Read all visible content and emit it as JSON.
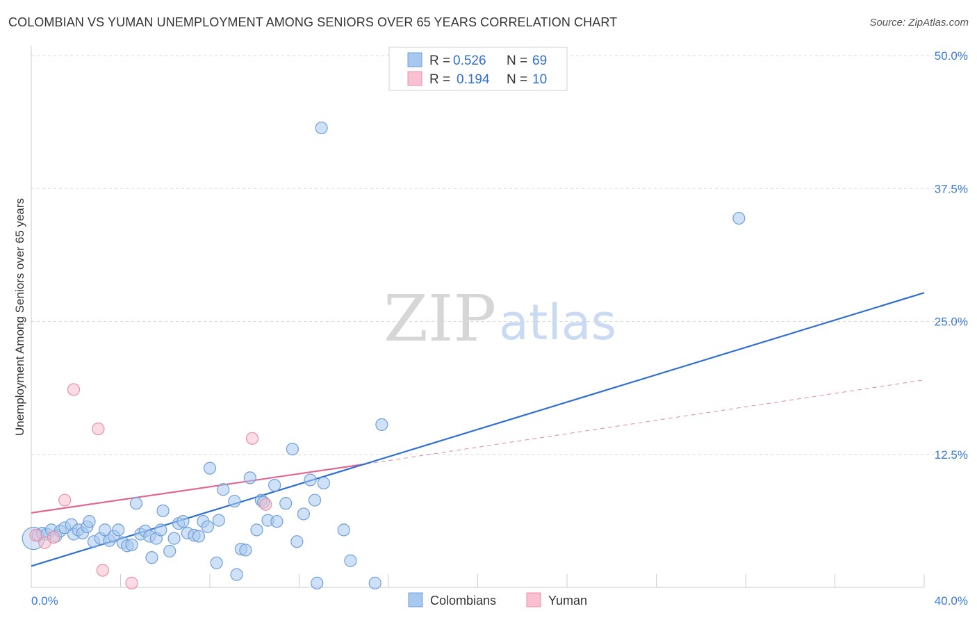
{
  "title": "COLOMBIAN VS YUMAN UNEMPLOYMENT AMONG SENIORS OVER 65 YEARS CORRELATION CHART",
  "source": "Source: ZipAtlas.com",
  "colors": {
    "blue_fill": "#a8c8f0",
    "blue_stroke": "#6f9fd8",
    "blue_line": "#2f6fd0",
    "pink_fill": "#f8c0d0",
    "pink_stroke": "#e890a8",
    "pink_line": "#e06890",
    "grid": "#d9d9d9",
    "axis_label": "#3b7bd4"
  },
  "legend": {
    "rows": [
      {
        "r_label": "R =",
        "r_value": "0.526",
        "n_label": "N =",
        "n_value": "69",
        "series": "Colombians"
      },
      {
        "r_label": "R =",
        "r_value": "0.194",
        "n_label": "N =",
        "n_value": "10",
        "series": "Yuman"
      }
    ]
  },
  "watermark": {
    "zip": "ZIP",
    "atlas": "atlas"
  },
  "chart_data": {
    "type": "scatter",
    "title": "COLOMBIAN VS YUMAN UNEMPLOYMENT AMONG SENIORS OVER 65 YEARS CORRELATION CHART",
    "xlabel": "",
    "ylabel": "Unemployment Among Seniors over 65 years",
    "xlim": [
      0,
      40
    ],
    "ylim": [
      0,
      50
    ],
    "x_tick_labels": [
      "0.0%",
      "40.0%"
    ],
    "y_ticks": [
      12.5,
      25.0,
      37.5,
      50.0
    ],
    "y_tick_labels": [
      "12.5%",
      "25.0%",
      "37.5%",
      "50.0%"
    ],
    "x_minor_ticks": [
      4,
      8,
      12,
      16,
      20,
      24,
      28,
      32,
      36,
      40
    ],
    "grid": true,
    "legend_position": "top-center",
    "series": [
      {
        "name": "Colombians",
        "color": "#6f9fd8",
        "r": 0.526,
        "n": 69,
        "trend": {
          "x0": 0,
          "y0": 2.0,
          "x1": 40,
          "y1": 27.7,
          "style": "solid"
        },
        "points": [
          {
            "x": 0.1,
            "y": 4.6,
            "big": true
          },
          {
            "x": 0.3,
            "y": 4.9
          },
          {
            "x": 0.5,
            "y": 5.1
          },
          {
            "x": 0.7,
            "y": 5.0
          },
          {
            "x": 0.9,
            "y": 5.4
          },
          {
            "x": 1.1,
            "y": 4.8
          },
          {
            "x": 1.3,
            "y": 5.3
          },
          {
            "x": 1.5,
            "y": 5.6
          },
          {
            "x": 1.8,
            "y": 5.9
          },
          {
            "x": 1.9,
            "y": 5.0
          },
          {
            "x": 2.1,
            "y": 5.4
          },
          {
            "x": 2.3,
            "y": 5.1
          },
          {
            "x": 2.5,
            "y": 5.7
          },
          {
            "x": 2.6,
            "y": 6.2
          },
          {
            "x": 2.8,
            "y": 4.3
          },
          {
            "x": 3.1,
            "y": 4.6
          },
          {
            "x": 3.3,
            "y": 5.4
          },
          {
            "x": 3.5,
            "y": 4.4
          },
          {
            "x": 3.7,
            "y": 4.8
          },
          {
            "x": 3.9,
            "y": 5.4
          },
          {
            "x": 4.1,
            "y": 4.2
          },
          {
            "x": 4.3,
            "y": 3.9
          },
          {
            "x": 4.5,
            "y": 4.0
          },
          {
            "x": 4.7,
            "y": 7.9
          },
          {
            "x": 4.9,
            "y": 5.0
          },
          {
            "x": 5.1,
            "y": 5.3
          },
          {
            "x": 5.3,
            "y": 4.8
          },
          {
            "x": 5.4,
            "y": 2.8
          },
          {
            "x": 5.6,
            "y": 4.6
          },
          {
            "x": 5.8,
            "y": 5.4
          },
          {
            "x": 5.9,
            "y": 7.2
          },
          {
            "x": 6.2,
            "y": 3.4
          },
          {
            "x": 6.4,
            "y": 4.6
          },
          {
            "x": 6.6,
            "y": 6.0
          },
          {
            "x": 6.8,
            "y": 6.2
          },
          {
            "x": 7.0,
            "y": 5.1
          },
          {
            "x": 7.3,
            "y": 4.9
          },
          {
            "x": 7.5,
            "y": 4.8
          },
          {
            "x": 7.7,
            "y": 6.2
          },
          {
            "x": 7.9,
            "y": 5.7
          },
          {
            "x": 8.0,
            "y": 11.2
          },
          {
            "x": 8.3,
            "y": 2.3
          },
          {
            "x": 8.4,
            "y": 6.3
          },
          {
            "x": 8.6,
            "y": 9.2
          },
          {
            "x": 9.1,
            "y": 8.1
          },
          {
            "x": 9.2,
            "y": 1.2
          },
          {
            "x": 9.4,
            "y": 3.6
          },
          {
            "x": 9.6,
            "y": 3.5
          },
          {
            "x": 9.8,
            "y": 10.3
          },
          {
            "x": 10.1,
            "y": 5.4
          },
          {
            "x": 10.3,
            "y": 8.2
          },
          {
            "x": 10.4,
            "y": 8.0
          },
          {
            "x": 10.6,
            "y": 6.3
          },
          {
            "x": 10.9,
            "y": 9.6
          },
          {
            "x": 11.0,
            "y": 6.2
          },
          {
            "x": 11.4,
            "y": 7.9
          },
          {
            "x": 11.7,
            "y": 13.0
          },
          {
            "x": 11.9,
            "y": 4.3
          },
          {
            "x": 12.2,
            "y": 6.9
          },
          {
            "x": 12.5,
            "y": 10.1
          },
          {
            "x": 12.7,
            "y": 8.2
          },
          {
            "x": 12.8,
            "y": 0.4
          },
          {
            "x": 13.1,
            "y": 9.8
          },
          {
            "x": 13.0,
            "y": 43.2
          },
          {
            "x": 14.0,
            "y": 5.4
          },
          {
            "x": 14.3,
            "y": 2.5
          },
          {
            "x": 15.4,
            "y": 0.4
          },
          {
            "x": 15.7,
            "y": 15.3
          },
          {
            "x": 31.7,
            "y": 34.7
          }
        ]
      },
      {
        "name": "Yuman",
        "color": "#e890a8",
        "r": 0.194,
        "n": 10,
        "trend": {
          "x0": 0,
          "y0": 7.0,
          "x1": 15.0,
          "y1": 11.6,
          "style": "solid"
        },
        "trend_extension": {
          "x0": 15.0,
          "y0": 11.6,
          "x1": 40,
          "y1": 19.5,
          "style": "dashed"
        },
        "points": [
          {
            "x": 0.2,
            "y": 4.9
          },
          {
            "x": 0.6,
            "y": 4.2
          },
          {
            "x": 1.0,
            "y": 4.7
          },
          {
            "x": 1.5,
            "y": 8.2
          },
          {
            "x": 1.9,
            "y": 18.6
          },
          {
            "x": 3.0,
            "y": 14.9
          },
          {
            "x": 3.2,
            "y": 1.6
          },
          {
            "x": 4.5,
            "y": 0.4
          },
          {
            "x": 9.9,
            "y": 14.0
          },
          {
            "x": 10.5,
            "y": 7.8
          }
        ]
      }
    ]
  }
}
